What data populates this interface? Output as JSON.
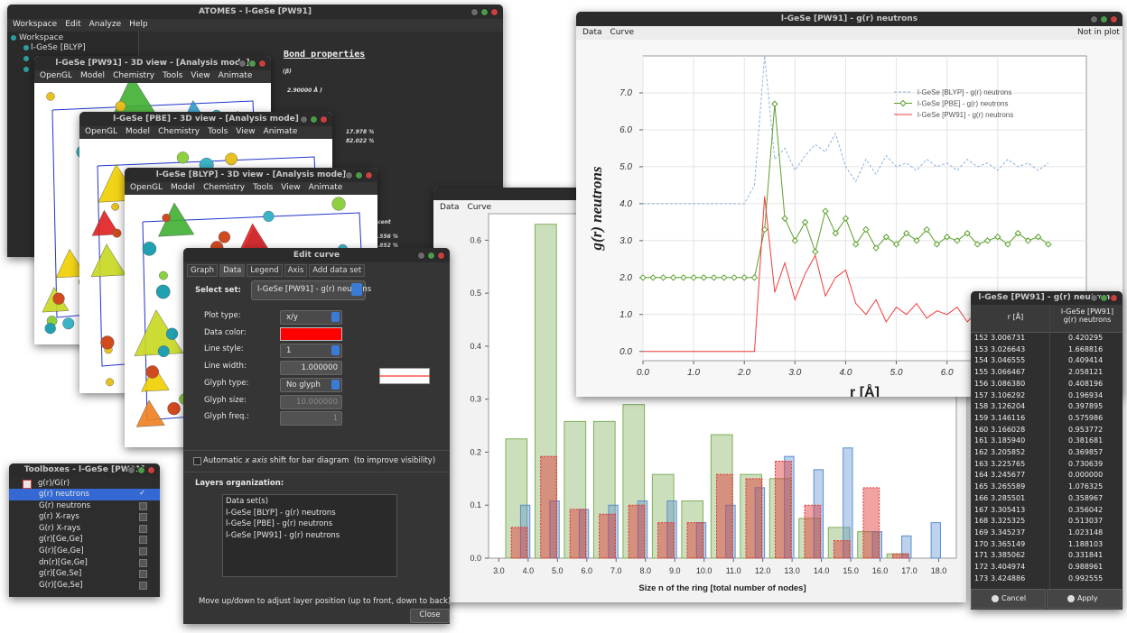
{
  "main_window": {
    "title": "ATOMES - l-GeSe [PW91]",
    "menu": [
      "Workspace",
      "Edit",
      "Analyze",
      "Help"
    ],
    "tree": [
      "Workspace",
      "l-GeSe [BLYP]"
    ],
    "heading": "Bond properties",
    "notes": [
      "(β)",
      "2.90000 Å )",
      "17.978 %",
      "82.022 %",
      "cent",
      ".556 %",
      ".852 %"
    ]
  },
  "view_windows": [
    {
      "title": "l-GeSe [PW91] - 3D view - [Analysis mode]"
    },
    {
      "title": "l-GeSe [PBE] - 3D view - [Analysis mode]"
    },
    {
      "title": "l-GeSe [BLYP] - 3D view - [Analysis mode]"
    }
  ],
  "view_menu": [
    "OpenGL",
    "Model",
    "Chemistry",
    "Tools",
    "View",
    "Animate"
  ],
  "gr_window": {
    "title": "l-GeSe [PW91] - g(r) neutrons",
    "menu": [
      "Data",
      "Curve"
    ],
    "status": "Not in plot"
  },
  "ring_window": {
    "menu": [
      "Data",
      "Curve"
    ]
  },
  "chart_data": [
    {
      "type": "line",
      "x": [
        0,
        0.2,
        0.4,
        0.6,
        0.8,
        1,
        1.2,
        1.4,
        1.6,
        1.8,
        2,
        2.2,
        2.4,
        2.6,
        2.8,
        3,
        3.2,
        3.4,
        3.6,
        3.8,
        4,
        4.2,
        4.4,
        4.6,
        4.8,
        5,
        5.2,
        5.4,
        5.6,
        5.8,
        6,
        6.2,
        6.4,
        6.6,
        6.8,
        7,
        7.2,
        7.4,
        7.6,
        7.8,
        8
      ],
      "xlim": [
        0,
        8.75
      ],
      "ylim": [
        -0.25,
        8
      ],
      "xticks": [
        {
          "value": 0,
          "label": "0.0"
        },
        {
          "value": 1,
          "label": "1.0"
        },
        {
          "value": 2,
          "label": "2.0"
        },
        {
          "value": 3,
          "label": "3.0"
        },
        {
          "value": 4,
          "label": "4.0"
        },
        {
          "value": 5,
          "label": "5.0"
        },
        {
          "value": 6,
          "label": "6.0"
        },
        {
          "value": 7,
          "label": "7.0"
        }
      ],
      "yticks": [
        {
          "value": 0,
          "label": "0.0"
        },
        {
          "value": 1,
          "label": "1.0"
        },
        {
          "value": 2,
          "label": "2.0"
        },
        {
          "value": 3,
          "label": "3.0"
        },
        {
          "value": 4,
          "label": "4.0"
        },
        {
          "value": 5,
          "label": "5.0"
        },
        {
          "value": 6,
          "label": "6.0"
        },
        {
          "value": 7,
          "label": "7.0"
        }
      ],
      "xlabel": "r [Å]",
      "ylabel": "g(r) neutrons",
      "grid": true,
      "legend": "top-right",
      "series": [
        {
          "name": "l-GeSe [BLYP] - g(r) neutrons",
          "color": "#8fb3e0",
          "style": "dashed",
          "values": [
            4,
            4,
            4,
            4,
            4,
            4,
            4,
            4,
            4,
            4,
            4,
            4.5,
            8.0,
            5.2,
            5.5,
            4.9,
            5.3,
            5.6,
            5.4,
            5.9,
            5.0,
            4.6,
            5.2,
            4.8,
            5.3,
            5.0,
            5.1,
            4.9,
            5.2,
            5.0,
            5.1,
            4.9,
            5.2,
            5.0,
            5.1,
            4.9,
            5.2,
            5.0,
            5.1,
            4.9,
            5.1
          ]
        },
        {
          "name": "l-GeSe [PBE] - g(r) neutrons",
          "color": "#5aa02c",
          "marker": "diamond",
          "values": [
            2,
            2,
            2,
            2,
            2,
            2,
            2,
            2,
            2,
            2,
            2,
            2,
            3.3,
            6.7,
            3.6,
            3.0,
            3.5,
            2.7,
            3.8,
            3.2,
            3.6,
            2.9,
            3.3,
            2.8,
            3.1,
            2.9,
            3.2,
            3.0,
            3.3,
            2.9,
            3.1,
            3.0,
            3.2,
            2.9,
            3.0,
            3.1,
            2.9,
            3.2,
            3.0,
            3.1,
            2.9
          ]
        },
        {
          "name": "l-GeSe [PW91] - g(r) neutrons",
          "color": "#f03c3c",
          "values": [
            0,
            0,
            0,
            0,
            0,
            0,
            0,
            0,
            0,
            0,
            0,
            0,
            4.2,
            1.6,
            2.4,
            1.4,
            2.1,
            2.6,
            1.5,
            2.0,
            2.2,
            1.3,
            1.0,
            1.4,
            0.8,
            1.2,
            1.0,
            1.3,
            0.9,
            1.1,
            1.0,
            1.2,
            0.8,
            1.1,
            1.0,
            1.2,
            0.9,
            1.1,
            1.0,
            1.0,
            0.9
          ]
        }
      ]
    },
    {
      "type": "bar",
      "xlim": [
        2.65,
        18.6
      ],
      "ylim": [
        0,
        0.65
      ],
      "xticks": [
        {
          "value": 3,
          "label": "3.0"
        },
        {
          "value": 4,
          "label": "4.0"
        },
        {
          "value": 5,
          "label": "5.0"
        },
        {
          "value": 6,
          "label": "6.0"
        },
        {
          "value": 7,
          "label": "7.0"
        },
        {
          "value": 8,
          "label": "8.0"
        },
        {
          "value": 9,
          "label": "9.0"
        },
        {
          "value": 10,
          "label": "10.0"
        },
        {
          "value": 11,
          "label": "11.0"
        },
        {
          "value": 12,
          "label": "12.0"
        },
        {
          "value": 13,
          "label": "13.0"
        },
        {
          "value": 14,
          "label": "14.0"
        },
        {
          "value": 15,
          "label": "15.0"
        },
        {
          "value": 16,
          "label": "16.0"
        },
        {
          "value": 17,
          "label": "17.0"
        },
        {
          "value": 18,
          "label": "18.0"
        }
      ],
      "yticks": [
        {
          "value": 0,
          "label": "0.0"
        },
        0.1,
        0.2,
        0.3,
        0.4,
        0.5,
        0.6
      ],
      "xlabel": "Size n of the ring [total number of nodes]",
      "grid": false,
      "series": [
        {
          "color": "#7fae5a",
          "x": [
            3.6,
            4.6,
            5.6,
            6.6,
            7.6,
            8.6,
            9.6,
            10.6,
            11.6,
            12.6,
            13.6,
            14.6,
            15.6,
            16.6
          ],
          "values": [
            0.225,
            0.63,
            0.258,
            0.258,
            0.29,
            0.158,
            0.108,
            0.233,
            0.158,
            0.15,
            0.075,
            0.058,
            0.05,
            0.008
          ]
        },
        {
          "color": "#5a8fd0",
          "x": [
            3.9,
            4.9,
            5.9,
            6.9,
            7.9,
            8.9,
            9.9,
            10.9,
            11.9,
            12.9,
            13.9,
            14.9,
            15.9,
            16.9,
            17.9
          ],
          "values": [
            0.1,
            0.108,
            0.092,
            0.1,
            0.108,
            0.108,
            0.067,
            0.1,
            0.133,
            0.192,
            0.167,
            0.208,
            0.05,
            0.042,
            0.067
          ]
        },
        {
          "color": "#e03030",
          "style": "dotted",
          "x": [
            3.7,
            4.7,
            5.7,
            6.7,
            7.7,
            8.7,
            9.7,
            10.7,
            11.7,
            12.7,
            13.7,
            14.7,
            15.7,
            16.7
          ],
          "values": [
            0.058,
            0.192,
            0.092,
            0.083,
            0.1,
            0.067,
            0.067,
            0.158,
            0.15,
            0.183,
            0.1,
            0.033,
            0.133,
            0.008
          ]
        }
      ]
    }
  ],
  "edit_curve": {
    "title": "Edit curve",
    "tabs": [
      "Graph",
      "Data",
      "Legend",
      "Axis",
      "Add data set"
    ],
    "select_label": "Select set:",
    "selected_set": "l-GeSe [PW91] - g(r) neutrons",
    "fields": [
      {
        "label": "Plot type:",
        "value": "x/y"
      },
      {
        "label": "Data color:"
      },
      {
        "label": "Line style:",
        "value": "1"
      },
      {
        "label": "Line width:",
        "value": "1.000000"
      },
      {
        "label": "Glyph type:",
        "value": "No glyph"
      },
      {
        "label": "Glyph size:",
        "value": "10.000000"
      },
      {
        "label": "Glyph freq.:",
        "value": "1"
      }
    ],
    "data_color": "#ff0000",
    "shift_option": [
      "Automatic ",
      "x axis",
      " shift for bar diagram  (to improve visibility)"
    ],
    "layers_label": "Layers organization:",
    "layers": [
      "Data set(s)",
      "l-GeSe [BLYP] - g(r) neutrons",
      "l-GeSe [PBE] - g(r) neutrons",
      "l-GeSe [PW91] - g(r) neutrons"
    ],
    "hint": "Move up/down to adjust layer position (up to front, down to back)",
    "close": "Close"
  },
  "toolboxes": {
    "title": "Toolboxes - l-GeSe [PW91]",
    "root": "g(r)/G(r)",
    "items": [
      "g(r) neutrons",
      "G(r) neutrons",
      "g(r) X-rays",
      "G(r) X-rays",
      "g(r)[Ge,Ge]",
      "G(r)[Ge,Ge]",
      "dn(r)[Ge,Ge]",
      "g(r)[Ge,Se]",
      "G(r)[Ge,Se]"
    ],
    "selected_mark": "✓"
  },
  "table_window": {
    "title": "l-GeSe [PW91] - g(r) neutrons",
    "headers": [
      "r [Å]",
      "l-GeSe [PW91] g(r) neutrons"
    ],
    "rows": [
      [
        "152",
        "3.006731",
        "0.420295"
      ],
      [
        "153",
        "3.026643",
        "1.668816"
      ],
      [
        "154",
        "3.046555",
        "0.409414"
      ],
      [
        "155",
        "3.066467",
        "2.058121"
      ],
      [
        "156",
        "3.086380",
        "0.408196"
      ],
      [
        "157",
        "3.106292",
        "0.196934"
      ],
      [
        "158",
        "3.126204",
        "0.397895"
      ],
      [
        "159",
        "3.146116",
        "0.575986"
      ],
      [
        "160",
        "3.166028",
        "0.953772"
      ],
      [
        "161",
        "3.185940",
        "0.381681"
      ],
      [
        "162",
        "3.205852",
        "0.369857"
      ],
      [
        "163",
        "3.225765",
        "0.730639"
      ],
      [
        "164",
        "3.245677",
        "0.000000"
      ],
      [
        "165",
        "3.265589",
        "1.076325"
      ],
      [
        "166",
        "3.285501",
        "0.358967"
      ],
      [
        "167",
        "3.305413",
        "0.356042"
      ],
      [
        "168",
        "3.325325",
        "0.513037"
      ],
      [
        "169",
        "3.345237",
        "1.023148"
      ],
      [
        "170",
        "3.365149",
        "1.188103"
      ],
      [
        "171",
        "3.385062",
        "0.331841"
      ],
      [
        "172",
        "3.404974",
        "0.988961"
      ],
      [
        "173",
        "3.424886",
        "0.992555"
      ]
    ],
    "buttons": [
      "Cancel",
      "Apply"
    ]
  }
}
